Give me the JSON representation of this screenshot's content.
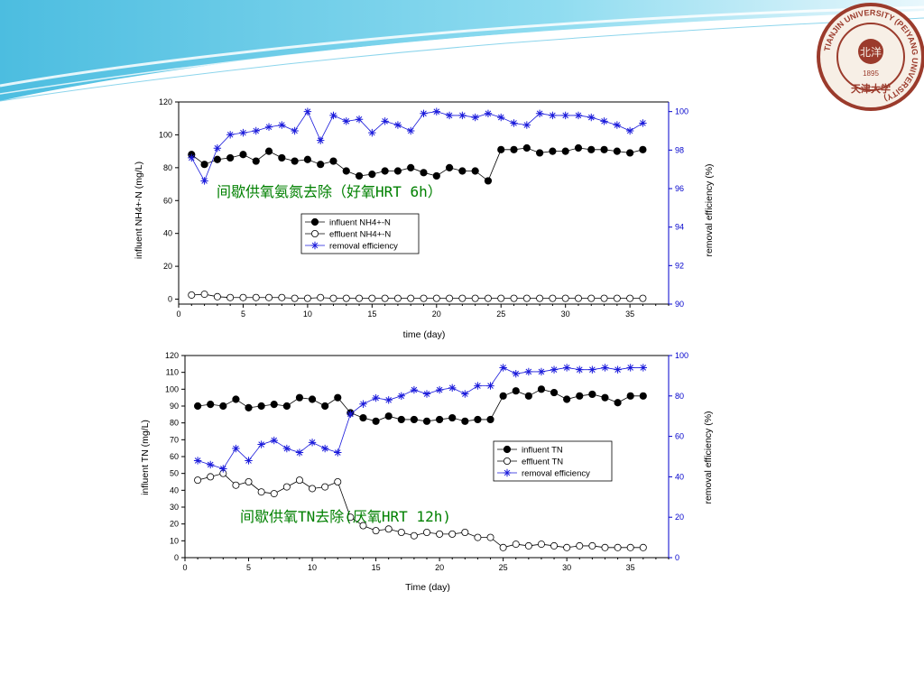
{
  "logo": {
    "text_top": "TIANJIN UNIVERSITY (PEIYANG UNIVERSITY)",
    "year": "1895",
    "seal_chars": "天津大学"
  },
  "colors": {
    "influent": "#000000",
    "effluent": "#000000",
    "removal": "#1a1adb",
    "annotation": "#008000",
    "header_band": "#5bc8e6"
  },
  "chart_data": [
    {
      "type": "line",
      "xlabel": "time (day)",
      "ylabel_left": "influent NH4+-N (mg/L)",
      "ylabel_right": "removal efficiency (%)",
      "xlim": [
        0,
        38
      ],
      "ylim_left": [
        -3,
        120
      ],
      "ylim_right": [
        90,
        100.5
      ],
      "x_ticks": [
        0,
        5,
        10,
        15,
        20,
        25,
        30,
        35
      ],
      "y_ticks_left": [
        0,
        20,
        40,
        60,
        80,
        100,
        120
      ],
      "y_ticks_right": [
        90,
        92,
        94,
        96,
        98,
        100
      ],
      "annotation": "间歇供氧氨氮去除（好氧HRT 6h）",
      "legend_position": "center",
      "x": [
        1,
        2,
        3,
        4,
        5,
        6,
        7,
        8,
        9,
        10,
        11,
        12,
        13,
        14,
        15,
        16,
        17,
        18,
        19,
        20,
        21,
        22,
        23,
        24,
        25,
        26,
        27,
        28,
        29,
        30,
        31,
        32,
        33,
        34,
        35,
        36
      ],
      "series": [
        {
          "name": "influent NH4+-N",
          "axis": "left",
          "marker": "filled-circle",
          "values": [
            88,
            82,
            85,
            86,
            88,
            84,
            90,
            86,
            84,
            85,
            82,
            84,
            78,
            75,
            76,
            78,
            78,
            80,
            77,
            75,
            80,
            78,
            78,
            72,
            91,
            91,
            92,
            89,
            90,
            90,
            92,
            91,
            91,
            90,
            89,
            91
          ]
        },
        {
          "name": "effluent NH4+-N",
          "axis": "left",
          "marker": "open-circle",
          "values": [
            2.5,
            3,
            1.5,
            1,
            1,
            1,
            1,
            1,
            0.5,
            0.5,
            1,
            0.5,
            0.5,
            0.5,
            0.5,
            0.5,
            0.5,
            0.5,
            0.5,
            0.5,
            0.5,
            0.5,
            0.5,
            0.5,
            0.5,
            0.5,
            0.5,
            0.5,
            0.5,
            0.5,
            0.5,
            0.5,
            0.5,
            0.5,
            0.5,
            0.5
          ]
        },
        {
          "name": "removal efficiency",
          "axis": "right",
          "marker": "star",
          "values": [
            97.6,
            96.4,
            98.1,
            98.8,
            98.9,
            99.0,
            99.2,
            99.3,
            99.0,
            100.0,
            98.5,
            99.8,
            99.5,
            99.6,
            98.9,
            99.5,
            99.3,
            99.0,
            99.9,
            100.0,
            99.8,
            99.8,
            99.7,
            99.9,
            99.7,
            99.4,
            99.3,
            99.9,
            99.8,
            99.8,
            99.8,
            99.7,
            99.5,
            99.3,
            99.0,
            99.4
          ]
        }
      ]
    },
    {
      "type": "line",
      "xlabel": "Time (day)",
      "ylabel_left": "influent TN (mg/L)",
      "ylabel_right": "removal efficiency (%)",
      "xlim": [
        0,
        38
      ],
      "ylim_left": [
        0,
        120
      ],
      "ylim_right": [
        0,
        100
      ],
      "x_ticks": [
        0,
        5,
        10,
        15,
        20,
        25,
        30,
        35
      ],
      "y_ticks_left": [
        0,
        10,
        20,
        30,
        40,
        50,
        60,
        70,
        80,
        90,
        100,
        110,
        120
      ],
      "y_ticks_right": [
        0,
        20,
        40,
        60,
        80,
        100
      ],
      "annotation": "间歇供氧TN去除(厌氧HRT 12h)",
      "legend_position": "right",
      "x": [
        1,
        2,
        3,
        4,
        5,
        6,
        7,
        8,
        9,
        10,
        11,
        12,
        13,
        14,
        15,
        16,
        17,
        18,
        19,
        20,
        21,
        22,
        23,
        24,
        25,
        26,
        27,
        28,
        29,
        30,
        31,
        32,
        33,
        34,
        35,
        36
      ],
      "series": [
        {
          "name": "influent TN",
          "axis": "left",
          "marker": "filled-circle",
          "values": [
            90,
            91,
            90,
            94,
            89,
            90,
            91,
            90,
            95,
            94,
            90,
            95,
            86,
            83,
            81,
            84,
            82,
            82,
            81,
            82,
            83,
            81,
            82,
            82,
            96,
            99,
            96,
            100,
            98,
            94,
            96,
            97,
            95,
            92,
            96,
            96
          ]
        },
        {
          "name": "effluent TN",
          "axis": "left",
          "marker": "open-circle",
          "values": [
            46,
            48,
            50,
            43,
            45,
            39,
            38,
            42,
            46,
            41,
            42,
            45,
            24,
            19,
            16,
            17,
            15,
            13,
            15,
            14,
            14,
            15,
            12,
            12,
            6,
            8,
            7,
            8,
            7,
            6,
            7,
            7,
            6,
            6,
            6,
            6
          ]
        },
        {
          "name": "removal efficiency",
          "axis": "right",
          "marker": "star",
          "values": [
            48,
            46,
            44,
            54,
            48,
            56,
            58,
            54,
            52,
            57,
            54,
            52,
            71,
            76,
            79,
            78,
            80,
            83,
            81,
            83,
            84,
            81,
            85,
            85,
            94,
            91,
            92,
            92,
            93,
            94,
            93,
            93,
            94,
            93,
            94,
            94
          ]
        }
      ]
    }
  ]
}
